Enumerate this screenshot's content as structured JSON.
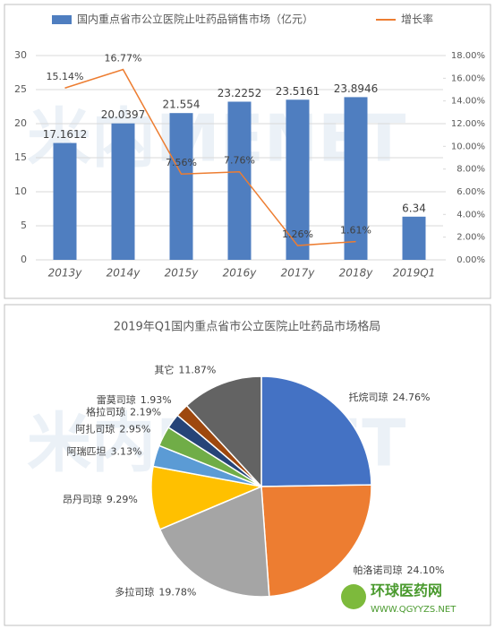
{
  "watermark": "米内MENET",
  "logo": {
    "name": "环球医药网",
    "url": "WWW.QGYYZS.NET"
  },
  "chart_data": [
    {
      "type": "bar-line",
      "categories": [
        "2013y",
        "2014y",
        "2015y",
        "2016y",
        "2017y",
        "2018y",
        "2019Q1"
      ],
      "series": [
        {
          "name": "国内重点省市公立医院止吐药品销售市场（亿元）",
          "color": "#4f7ec0",
          "values": [
            17.1612,
            20.0397,
            21.554,
            23.2252,
            23.5161,
            23.8946,
            6.34
          ]
        },
        {
          "name": "增长率",
          "color": "#ed7d31",
          "axis": "y2",
          "values": [
            15.14,
            16.77,
            7.56,
            7.76,
            1.26,
            1.61,
            null
          ],
          "value_labels": [
            "15.14%",
            "16.77%",
            "7.56%",
            "7.76%",
            "1.26%",
            "1.61%",
            null
          ]
        }
      ],
      "ylim": [
        0,
        30
      ],
      "yticks": [
        0,
        5,
        10,
        15,
        20,
        25,
        30
      ],
      "y2lim": [
        0,
        18
      ],
      "y2ticks": [
        {
          "value": 0,
          "label": "0.00%"
        },
        {
          "value": 2,
          "label": "2.00%"
        },
        {
          "value": 4,
          "label": "4.00%"
        },
        {
          "value": 6,
          "label": "6.00%"
        },
        {
          "value": 8,
          "label": "8.00%"
        },
        {
          "value": 10,
          "label": "10.00%"
        },
        {
          "value": 12,
          "label": "12.00%"
        },
        {
          "value": 14,
          "label": "14.00%"
        },
        {
          "value": 16,
          "label": "16.00%"
        },
        {
          "value": 18,
          "label": "18.00%"
        }
      ],
      "legend": "top"
    },
    {
      "type": "pie",
      "title": "2019年Q1国内重点省市公立医院止吐药品市场格局",
      "categories": [
        "托烷司琼",
        "帕洛诺司琼",
        "多拉司琼",
        "昂丹司琼",
        "阿瑞匹坦",
        "阿扎司琼",
        "格拉司琼",
        "雷莫司琼",
        "其它"
      ],
      "values": [
        24.76,
        24.1,
        19.78,
        9.29,
        3.13,
        2.95,
        2.19,
        1.93,
        11.87
      ],
      "value_labels": [
        "24.76%",
        "24.10%",
        "19.78%",
        "9.29%",
        "3.13%",
        "2.95%",
        "2.19%",
        "1.93%",
        "11.87%"
      ],
      "colors": [
        "#4472c4",
        "#ed7d31",
        "#a5a5a5",
        "#ffc000",
        "#5b9bd5",
        "#70ad47",
        "#264478",
        "#9e480e",
        "#636363"
      ]
    }
  ]
}
